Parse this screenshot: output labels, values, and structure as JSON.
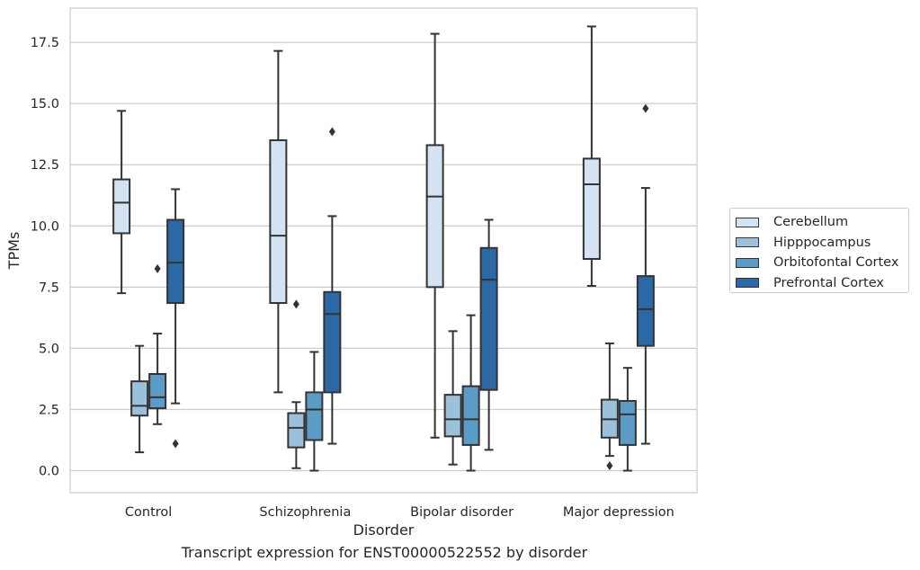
{
  "caption": "Transcript expression for ENST00000522552 by disorder",
  "chart_data": {
    "type": "boxplot",
    "xlabel": "Disorder",
    "ylabel": "TPMs",
    "ylim": [
      -0.9,
      18.9
    ],
    "yticks": [
      "0.0",
      "2.5",
      "5.0",
      "7.5",
      "10.0",
      "12.5",
      "15.0",
      "17.5"
    ],
    "grid": "horizontal",
    "legend_position": "right",
    "categories": [
      "Control",
      "Schizophrenia",
      "Bipolar disorder",
      "Major depression"
    ],
    "series": [
      {
        "name": "Cerebellum",
        "color": "#d4e3f2",
        "boxes": [
          {
            "whisker_low": 7.25,
            "q1": 9.7,
            "median": 10.95,
            "q3": 11.9,
            "whisker_high": 14.7,
            "outliers": []
          },
          {
            "whisker_low": 3.2,
            "q1": 6.85,
            "median": 9.6,
            "q3": 13.5,
            "whisker_high": 17.15,
            "outliers": []
          },
          {
            "whisker_low": 1.35,
            "q1": 7.5,
            "median": 11.2,
            "q3": 13.3,
            "whisker_high": 17.85,
            "outliers": []
          },
          {
            "whisker_low": 7.55,
            "q1": 8.65,
            "median": 11.7,
            "q3": 12.75,
            "whisker_high": 18.15,
            "outliers": []
          }
        ]
      },
      {
        "name": "Hipppocampus",
        "color": "#9ac1d9",
        "boxes": [
          {
            "whisker_low": 0.75,
            "q1": 2.25,
            "median": 2.65,
            "q3": 3.65,
            "whisker_high": 5.1,
            "outliers": []
          },
          {
            "whisker_low": 0.1,
            "q1": 0.95,
            "median": 1.75,
            "q3": 2.35,
            "whisker_high": 2.8,
            "outliers": [
              6.8
            ]
          },
          {
            "whisker_low": 0.25,
            "q1": 1.4,
            "median": 2.1,
            "q3": 3.1,
            "whisker_high": 5.7,
            "outliers": []
          },
          {
            "whisker_low": 0.6,
            "q1": 1.35,
            "median": 2.1,
            "q3": 2.9,
            "whisker_high": 5.2,
            "outliers": [
              0.2
            ]
          }
        ]
      },
      {
        "name": "Orbitofontal Cortex",
        "color": "#5b9cc6",
        "boxes": [
          {
            "whisker_low": 1.9,
            "q1": 2.55,
            "median": 3.0,
            "q3": 3.95,
            "whisker_high": 5.6,
            "outliers": [
              8.25
            ]
          },
          {
            "whisker_low": 0.0,
            "q1": 1.25,
            "median": 2.5,
            "q3": 3.2,
            "whisker_high": 4.85,
            "outliers": []
          },
          {
            "whisker_low": 0.0,
            "q1": 1.05,
            "median": 2.1,
            "q3": 3.45,
            "whisker_high": 6.35,
            "outliers": []
          },
          {
            "whisker_low": 0.0,
            "q1": 1.05,
            "median": 2.3,
            "q3": 2.85,
            "whisker_high": 4.2,
            "outliers": []
          }
        ]
      },
      {
        "name": "Prefrontal Cortex",
        "color": "#2b69a6",
        "boxes": [
          {
            "whisker_low": 2.75,
            "q1": 6.85,
            "median": 8.5,
            "q3": 10.25,
            "whisker_high": 11.5,
            "outliers": [
              1.1
            ]
          },
          {
            "whisker_low": 1.1,
            "q1": 3.2,
            "median": 6.4,
            "q3": 7.3,
            "whisker_high": 10.4,
            "outliers": [
              13.85
            ]
          },
          {
            "whisker_low": 0.85,
            "q1": 3.3,
            "median": 7.8,
            "q3": 9.1,
            "whisker_high": 10.25,
            "outliers": []
          },
          {
            "whisker_low": 1.1,
            "q1": 5.1,
            "median": 6.6,
            "q3": 7.95,
            "whisker_high": 11.55,
            "outliers": [
              14.8
            ]
          }
        ]
      }
    ]
  }
}
